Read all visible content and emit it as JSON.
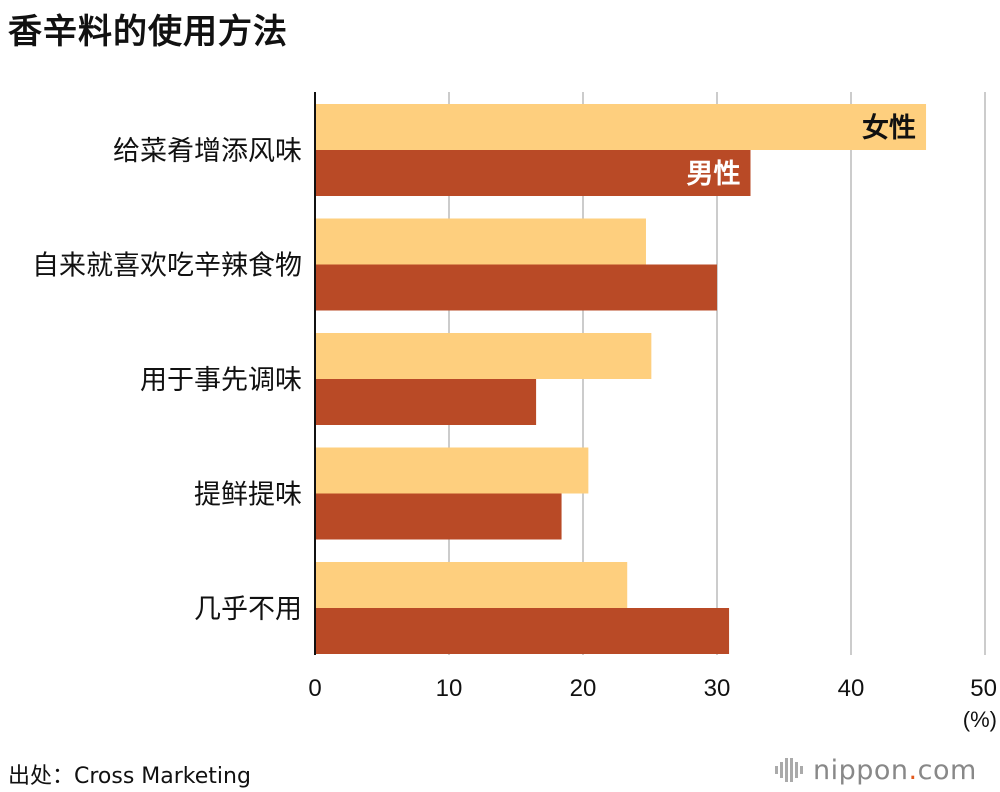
{
  "title": "香辛料的使用方法",
  "source": "出处：Cross Marketing",
  "logo": {
    "brand": "nippon",
    "dot": ".",
    "tld": "com"
  },
  "colors": {
    "female": "#FECF7E",
    "male": "#B94A26",
    "grid": "#cccccc",
    "axis": "#111111"
  },
  "chart_data": {
    "type": "bar",
    "orientation": "horizontal",
    "title": "香辛料的使用方法",
    "categories": [
      "给菜肴增添风味",
      "自来就喜欢吃辛辣食物",
      "用于事先调味",
      "提鲜提味",
      "几乎不用"
    ],
    "series": [
      {
        "name": "女性",
        "values": [
          45.6,
          24.7,
          25.1,
          20.4,
          23.3
        ]
      },
      {
        "name": "男性",
        "values": [
          32.5,
          30.0,
          16.5,
          18.4,
          30.9
        ]
      }
    ],
    "xlim": [
      0,
      50
    ],
    "xticks": [
      "0",
      "10",
      "20",
      "30",
      "40",
      "50"
    ],
    "xunit": "(%)",
    "grid": true,
    "legend": "inline labels on first category bars"
  }
}
